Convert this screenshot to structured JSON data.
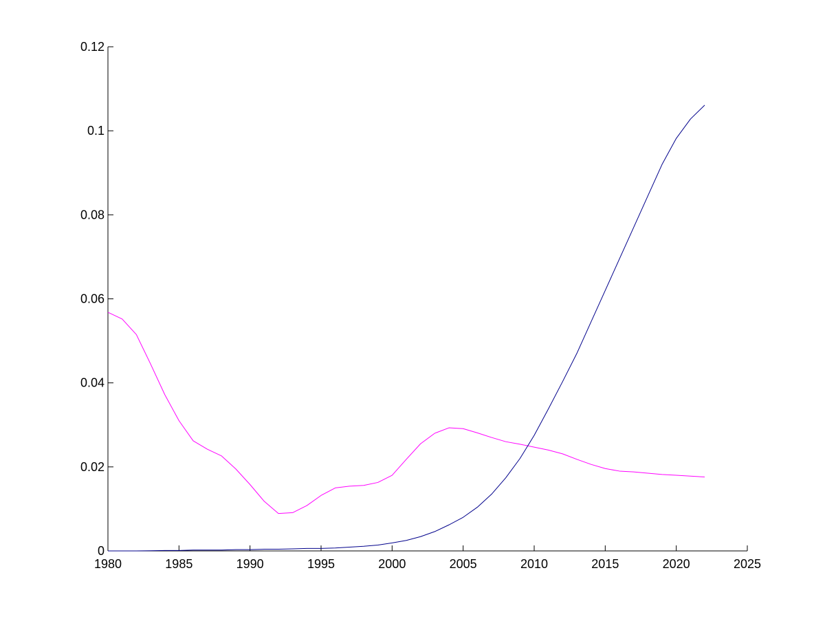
{
  "colors": {
    "background": "#ffffff",
    "axes": "#000000"
  },
  "chart_data": {
    "type": "line",
    "title": "",
    "xlabel": "",
    "ylabel": "",
    "grid": false,
    "xlim": [
      1980,
      2025
    ],
    "ylim": [
      0,
      0.12
    ],
    "x_ticks": [
      "1980",
      "1985",
      "1990",
      "1995",
      "2000",
      "2005",
      "2010",
      "2015",
      "2020",
      "2025"
    ],
    "y_ticks": [
      "0",
      "0.02",
      "0.04",
      "0.06",
      "0.08",
      "0.1",
      "0.12"
    ],
    "series": [
      {
        "color": "#ff00ff",
        "x": [
          1980,
          1981,
          1982,
          1983,
          1984,
          1985,
          1986,
          1987,
          1988,
          1989,
          1990,
          1991,
          1992,
          1993,
          1994,
          1995,
          1996,
          1997,
          1998,
          1999,
          2000,
          2001,
          2002,
          2003,
          2004,
          2005,
          2006,
          2007,
          2008,
          2009,
          2010,
          2011,
          2012,
          2013,
          2014,
          2015,
          2016,
          2017,
          2018,
          2019,
          2020,
          2021,
          2022
        ],
        "y": [
          0.0568,
          0.0552,
          0.0515,
          0.0445,
          0.0372,
          0.031,
          0.0262,
          0.0242,
          0.0226,
          0.0195,
          0.0158,
          0.0118,
          0.0089,
          0.0091,
          0.0108,
          0.0132,
          0.015,
          0.0154,
          0.0156,
          0.0163,
          0.018,
          0.0218,
          0.0255,
          0.028,
          0.0293,
          0.0291,
          0.0281,
          0.027,
          0.026,
          0.0254,
          0.0247,
          0.024,
          0.0231,
          0.0218,
          0.0206,
          0.0196,
          0.019,
          0.0188,
          0.0185,
          0.0182,
          0.018,
          0.0178,
          0.0176
        ]
      },
      {
        "color": "#00008b",
        "x": [
          1980,
          1981,
          1982,
          1983,
          1984,
          1985,
          1986,
          1987,
          1988,
          1989,
          1990,
          1991,
          1992,
          1993,
          1994,
          1995,
          1996,
          1997,
          1998,
          1999,
          2000,
          2001,
          2002,
          2003,
          2004,
          2005,
          2006,
          2007,
          2008,
          2009,
          2010,
          2011,
          2012,
          2013,
          2014,
          2015,
          2016,
          2017,
          2018,
          2019,
          2020,
          2021,
          2022
        ],
        "y": [
          0.0,
          0.0,
          0.0,
          5e-05,
          0.0001,
          0.0001,
          0.0002,
          0.0002,
          0.0002,
          0.0003,
          0.0003,
          0.0004,
          0.0004,
          0.0005,
          0.0006,
          0.0006,
          0.0007,
          0.0009,
          0.0011,
          0.0014,
          0.0019,
          0.0025,
          0.0034,
          0.0046,
          0.0062,
          0.008,
          0.0104,
          0.0135,
          0.0174,
          0.022,
          0.0275,
          0.0338,
          0.0403,
          0.047,
          0.0545,
          0.062,
          0.0695,
          0.077,
          0.0845,
          0.092,
          0.0982,
          0.1028,
          0.1061
        ]
      }
    ]
  }
}
